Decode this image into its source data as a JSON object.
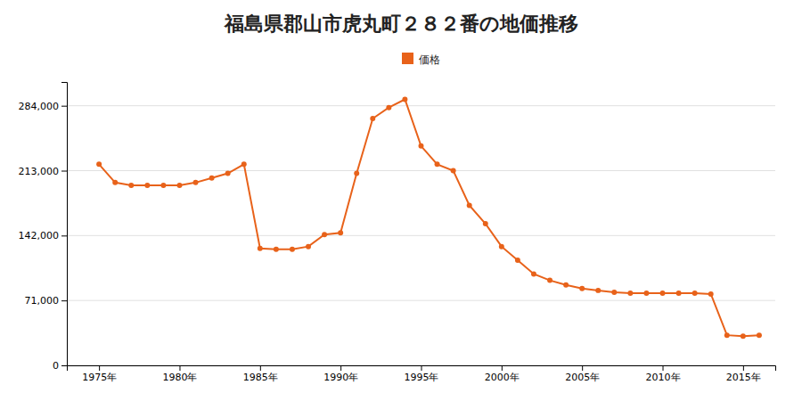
{
  "chart_data": {
    "type": "line",
    "title": "福島県郡山市虎丸町２８２番の地価推移",
    "x": [
      1975,
      1976,
      1977,
      1978,
      1979,
      1980,
      1981,
      1982,
      1983,
      1984,
      1985,
      1986,
      1987,
      1988,
      1989,
      1990,
      1991,
      1992,
      1993,
      1994,
      1995,
      1996,
      1997,
      1998,
      1999,
      2000,
      2001,
      2002,
      2003,
      2004,
      2005,
      2006,
      2007,
      2008,
      2009,
      2010,
      2011,
      2012,
      2013,
      2014,
      2015,
      2016
    ],
    "series": [
      {
        "name": "価格",
        "color": "#E8621A",
        "marker": "circle",
        "values": [
          220000,
          200000,
          197000,
          197000,
          197000,
          197000,
          200000,
          205000,
          210000,
          220000,
          128000,
          127000,
          127000,
          130000,
          143000,
          145000,
          210000,
          270000,
          282000,
          291000,
          240000,
          220000,
          213000,
          175000,
          155000,
          130000,
          115000,
          100000,
          93000,
          88000,
          84000,
          82000,
          80000,
          79000,
          79000,
          79000,
          79000,
          79000,
          78000,
          33000,
          32000,
          33000
        ]
      }
    ],
    "xlim": [
      1973,
      2017
    ],
    "xticks": [
      {
        "value": 1975,
        "label": "1975年"
      },
      {
        "value": 1980,
        "label": "1980年"
      },
      {
        "value": 1985,
        "label": "1985年"
      },
      {
        "value": 1990,
        "label": "1990年"
      },
      {
        "value": 1995,
        "label": "1995年"
      },
      {
        "value": 2000,
        "label": "2000年"
      },
      {
        "value": 2005,
        "label": "2005年"
      },
      {
        "value": 2010,
        "label": "2010年"
      },
      {
        "value": 2015,
        "label": "2015年"
      }
    ],
    "ylim": [
      0,
      310000
    ],
    "yticks": [
      0,
      {
        "value": 71000,
        "label": "71,000"
      },
      {
        "value": 142000,
        "label": "142,000"
      },
      {
        "value": 213000,
        "label": "213,000"
      },
      {
        "value": 284000,
        "label": "284,000"
      }
    ],
    "grid": true,
    "legend": "top"
  }
}
